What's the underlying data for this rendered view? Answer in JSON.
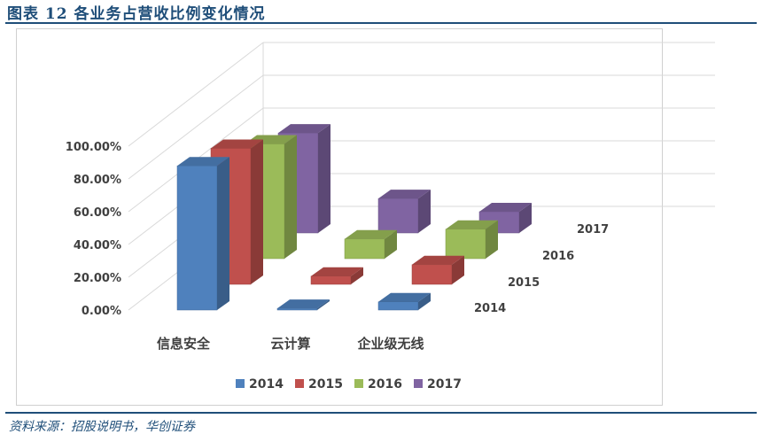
{
  "header": {
    "title": "图表 12   各业务占营收比例变化情况"
  },
  "footer": {
    "source": "资料来源：招股说明书，华创证券"
  },
  "chart_data": {
    "type": "bar",
    "subtype": "3d-column",
    "categories": [
      "信息安全",
      "云计算",
      "企业级无线"
    ],
    "series": [
      {
        "name": "2014",
        "color": "#4f81bd",
        "values": [
          0.88,
          0.01,
          0.05
        ]
      },
      {
        "name": "2015",
        "color": "#c0504d",
        "values": [
          0.83,
          0.05,
          0.12
        ]
      },
      {
        "name": "2016",
        "color": "#9bbb59",
        "values": [
          0.7,
          0.12,
          0.18
        ]
      },
      {
        "name": "2017",
        "color": "#8064a2",
        "values": [
          0.61,
          0.21,
          0.13
        ]
      }
    ],
    "y_ticks": [
      "0.00%",
      "20.00%",
      "40.00%",
      "60.00%",
      "80.00%",
      "100.00%"
    ],
    "ylim": [
      0,
      1
    ],
    "depth_labels": [
      "2014",
      "2015",
      "2016",
      "2017"
    ],
    "legend": {
      "position": "bottom",
      "entries": [
        "2014",
        "2015",
        "2016",
        "2017"
      ]
    },
    "grid": true
  }
}
